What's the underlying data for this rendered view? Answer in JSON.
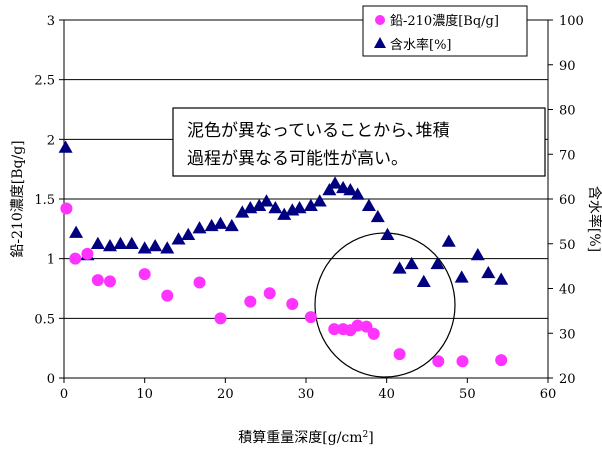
{
  "chart_data": {
    "type": "scatter",
    "xlabel": "積算重量深度[g/cm",
    "xlabel_superscript": "2",
    "xlabel_suffix": "]",
    "ylabel_left": "鉛-210濃度[Bq/g]",
    "ylabel_right": "含水率[%]",
    "xlim": [
      0,
      60
    ],
    "ylim_left": [
      0,
      3
    ],
    "ylim_right": [
      20,
      100
    ],
    "xticks": [
      "0",
      "10",
      "20",
      "30",
      "40",
      "50",
      "60"
    ],
    "yticks_left": [
      "0",
      "0.5",
      "1",
      "1.5",
      "2",
      "2.5",
      "3"
    ],
    "yticks_right": [
      "20",
      "30",
      "40",
      "50",
      "60",
      "70",
      "80",
      "90",
      "100"
    ],
    "grid": "horizontal",
    "legend_position": "top-right",
    "series": [
      {
        "name": "鉛-210濃度[Bq/g]",
        "axis": "left",
        "marker": "circle",
        "color": "#ff33ff",
        "x": [
          0.3,
          1.4,
          2.9,
          4.2,
          5.7,
          10.0,
          12.8,
          16.8,
          19.4,
          23.1,
          25.5,
          28.3,
          30.6,
          33.5,
          34.6,
          35.5,
          36.4,
          37.5,
          38.4,
          41.6,
          46.4,
          49.4,
          54.2
        ],
        "values": [
          1.42,
          1.0,
          1.04,
          0.82,
          0.81,
          0.87,
          0.69,
          0.8,
          0.5,
          0.64,
          0.71,
          0.62,
          0.51,
          0.41,
          0.41,
          0.4,
          0.44,
          0.43,
          0.37,
          0.2,
          0.14,
          0.14,
          0.15
        ]
      },
      {
        "name": "含水率[%]",
        "axis": "right",
        "marker": "triangle",
        "color": "#000080",
        "x": [
          0.2,
          1.5,
          2.9,
          4.2,
          5.7,
          7.0,
          8.4,
          10.0,
          11.3,
          12.8,
          14.2,
          15.4,
          16.8,
          18.3,
          19.4,
          20.8,
          22.1,
          23.1,
          24.2,
          25.1,
          26.2,
          27.3,
          28.3,
          29.2,
          30.6,
          31.7,
          32.9,
          33.6,
          34.6,
          35.5,
          36.4,
          37.8,
          38.9,
          40.1,
          41.6,
          43.1,
          44.6,
          46.3,
          47.7,
          49.3,
          51.3,
          52.6,
          54.2
        ],
        "values": [
          71.5,
          52.5,
          47.5,
          50.0,
          49.5,
          50.0,
          50.0,
          49.0,
          49.5,
          49.0,
          51.0,
          52.0,
          53.5,
          54.0,
          54.5,
          54.0,
          57.0,
          58.0,
          58.5,
          59.5,
          58.0,
          56.5,
          57.5,
          58.0,
          58.5,
          59.5,
          62.0,
          63.5,
          62.5,
          62.0,
          61.0,
          58.5,
          56.0,
          52.0,
          44.5,
          45.5,
          41.5,
          45.5,
          50.5,
          42.5,
          47.5,
          43.5,
          42.0
        ]
      }
    ],
    "annotation": {
      "line1": "泥色が異なっていることから､堆積",
      "line2": "過程が異なる可能性が高い。",
      "circle_center": [
        35,
        0.45
      ],
      "note": "ellipse highlighting depth ~32-42"
    }
  }
}
